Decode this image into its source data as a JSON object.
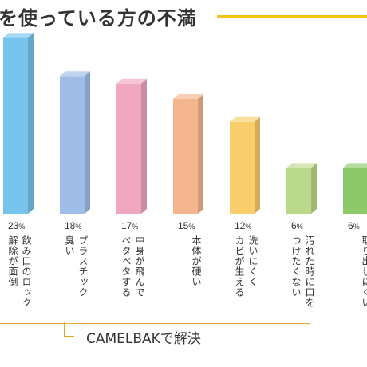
{
  "header": {
    "title": "を使っている方の不満"
  },
  "chart_data": {
    "type": "bar",
    "value_unit": "%",
    "categories": [
      [
        "飲み口のロック",
        "解除が面倒"
      ],
      [
        "プラスチック",
        "臭い"
      ],
      [
        "中身が飛んで",
        "ベタベタする"
      ],
      [
        "本体が硬い"
      ],
      [
        "洗いにくく",
        "カビが生える"
      ],
      [
        "汚れた時に口を",
        "つけたくない"
      ],
      [
        "取り出しにくい"
      ]
    ],
    "values": [
      23,
      18,
      17,
      15,
      12,
      6,
      6
    ],
    "colors": [
      "#76c3ee",
      "#9fbde6",
      "#f0a6c0",
      "#f4b58e",
      "#f8cd6a",
      "#bbd98b",
      "#8dc86b"
    ]
  },
  "footer": {
    "solution": "CAMELBAKで解決"
  }
}
